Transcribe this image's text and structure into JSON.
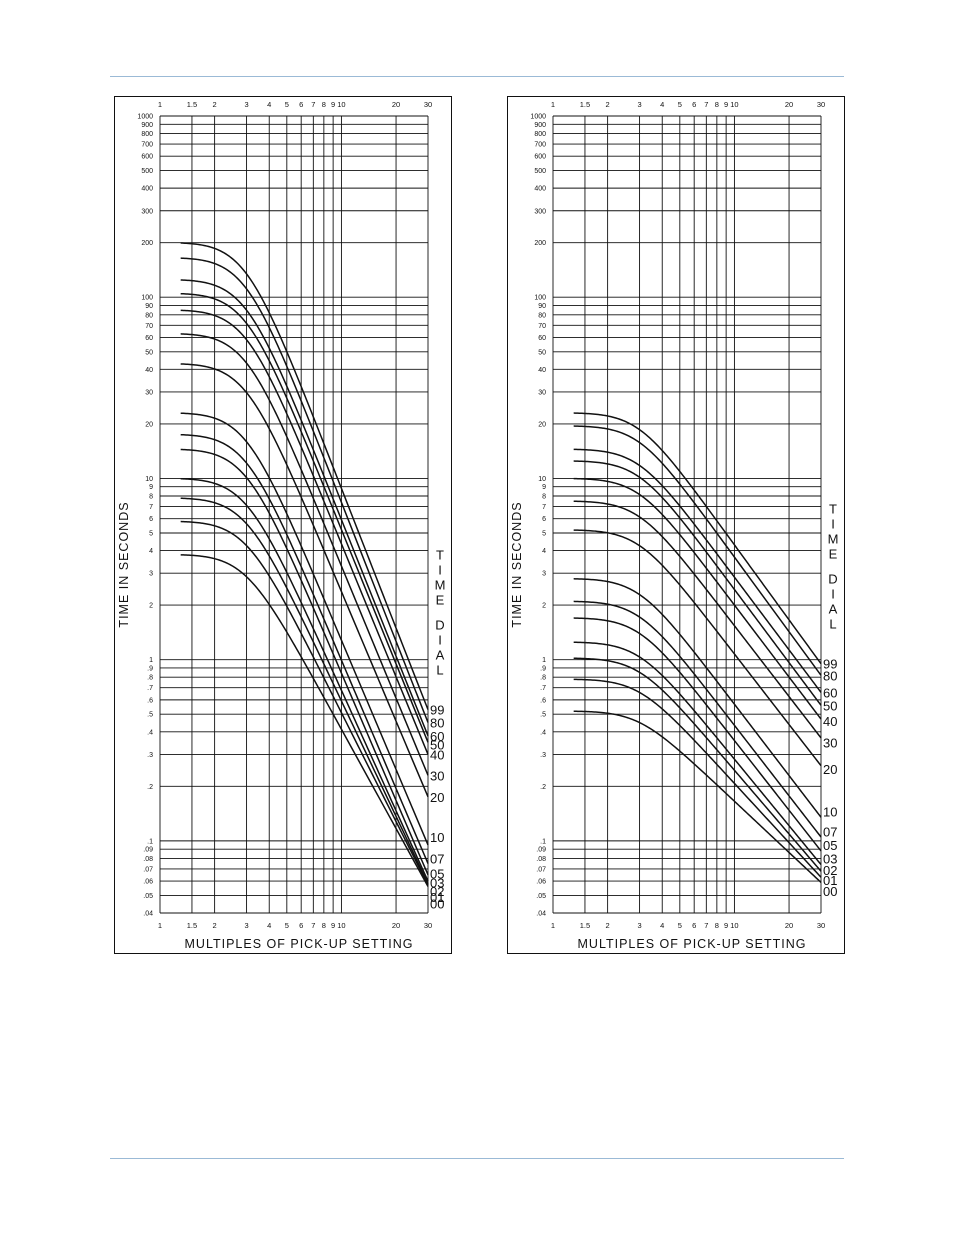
{
  "page": {
    "rule_color": "#9bbad6",
    "line_color": "#111111"
  },
  "chart_data": [
    {
      "type": "line",
      "title": "",
      "xlabel": "MULTIPLES OF PICK-UP SETTING",
      "ylabel": "TIME IN SECONDS",
      "xscale": "log",
      "yscale": "log",
      "xlim": [
        1,
        30
      ],
      "ylim": [
        0.04,
        1000
      ],
      "x_ticks": [
        "1",
        "1.5",
        "2",
        "3",
        "4",
        "5",
        "6",
        "7",
        "8",
        "9",
        "10",
        "20",
        "30"
      ],
      "y_ticks": [
        "1000",
        "900",
        "800",
        "700",
        "600",
        "500",
        "400",
        "300",
        "200",
        "100",
        "90",
        "80",
        "70",
        "60",
        "50",
        "40",
        "30",
        "20",
        "10",
        "9",
        "8",
        "7",
        "6",
        "5",
        "4",
        "3",
        "2",
        "1",
        ".9",
        ".8",
        ".7",
        ".6",
        ".5",
        ".4",
        ".3",
        ".2",
        ".1",
        ".09",
        ".08",
        ".07",
        ".06",
        ".05",
        ".04"
      ],
      "grid": true,
      "legend_title": "TIME DIAL",
      "legend_placement": "right",
      "series": [
        {
          "name": "99",
          "plateau": 200,
          "end": 0.53
        },
        {
          "name": "80",
          "plateau": 165,
          "end": 0.45
        },
        {
          "name": "60",
          "plateau": 125,
          "end": 0.38
        },
        {
          "name": "50",
          "plateau": 105,
          "end": 0.35
        },
        {
          "name": "40",
          "plateau": 85,
          "end": 0.3
        },
        {
          "name": "30",
          "plateau": 63,
          "end": 0.23
        },
        {
          "name": "20",
          "plateau": 43,
          "end": 0.175
        },
        {
          "name": "10",
          "plateau": 23,
          "end": 0.095
        },
        {
          "name": "07",
          "plateau": 17.5,
          "end": 0.075
        },
        {
          "name": "05",
          "plateau": 14.5,
          "end": 0.065
        },
        {
          "name": "03",
          "plateau": 10,
          "end": 0.06
        },
        {
          "name": "02",
          "plateau": 7.8,
          "end": 0.058
        },
        {
          "name": "01",
          "plateau": 5.8,
          "end": 0.057
        },
        {
          "name": "00",
          "plateau": 3.8,
          "end": 0.056
        }
      ],
      "label_values": [
        0.53,
        0.45,
        0.38,
        0.34,
        0.3,
        0.23,
        0.175,
        0.105,
        0.08,
        0.066,
        0.059,
        0.053,
        0.049,
        0.045
      ]
    },
    {
      "type": "line",
      "title": "",
      "xlabel": "MULTIPLES OF PICK-UP SETTING",
      "ylabel": "TIME IN SECONDS",
      "xscale": "log",
      "yscale": "log",
      "xlim": [
        1,
        30
      ],
      "ylim": [
        0.04,
        1000
      ],
      "x_ticks": [
        "1",
        "1.5",
        "2",
        "3",
        "4",
        "5",
        "6",
        "7",
        "8",
        "9",
        "10",
        "20",
        "30"
      ],
      "y_ticks": [
        "1000",
        "900",
        "800",
        "700",
        "600",
        "500",
        "400",
        "300",
        "200",
        "100",
        "90",
        "80",
        "70",
        "60",
        "50",
        "40",
        "30",
        "20",
        "10",
        "9",
        "8",
        "7",
        "6",
        "5",
        "4",
        "3",
        "2",
        "1",
        ".9",
        ".8",
        ".7",
        ".6",
        ".5",
        ".4",
        ".3",
        ".2",
        ".1",
        ".09",
        ".08",
        ".07",
        ".06",
        ".05",
        ".04"
      ],
      "grid": true,
      "legend_title": "TIME DIAL",
      "legend_placement": "right",
      "series": [
        {
          "name": "99",
          "plateau": 23,
          "end": 0.95
        },
        {
          "name": "80",
          "plateau": 19.5,
          "end": 0.82
        },
        {
          "name": "60",
          "plateau": 14.5,
          "end": 0.66
        },
        {
          "name": "50",
          "plateau": 12.5,
          "end": 0.56
        },
        {
          "name": "40",
          "plateau": 10,
          "end": 0.47
        },
        {
          "name": "30",
          "plateau": 7.5,
          "end": 0.37
        },
        {
          "name": "20",
          "plateau": 5.2,
          "end": 0.26
        },
        {
          "name": "10",
          "plateau": 2.8,
          "end": 0.135
        },
        {
          "name": "07",
          "plateau": 2.1,
          "end": 0.105
        },
        {
          "name": "05",
          "plateau": 1.7,
          "end": 0.088
        },
        {
          "name": "03",
          "plateau": 1.25,
          "end": 0.074
        },
        {
          "name": "02",
          "plateau": 1.02,
          "end": 0.068
        },
        {
          "name": "01",
          "plateau": 0.78,
          "end": 0.063
        },
        {
          "name": "00",
          "plateau": 0.52,
          "end": 0.059
        }
      ],
      "label_values": [
        0.95,
        0.82,
        0.66,
        0.56,
        0.46,
        0.35,
        0.25,
        0.145,
        0.113,
        0.095,
        0.08,
        0.069,
        0.061,
        0.053
      ]
    }
  ]
}
